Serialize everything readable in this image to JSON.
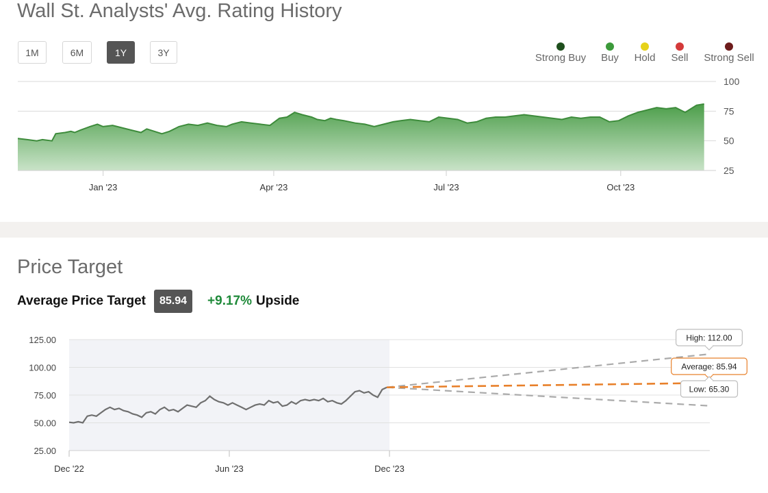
{
  "rating_section": {
    "title": "Wall St. Analysts' Avg. Rating History",
    "range_buttons": [
      "1M",
      "6M",
      "1Y",
      "3Y"
    ],
    "active_range": "1Y",
    "legend": [
      {
        "label": "Strong Buy",
        "color": "#1e4f1d"
      },
      {
        "label": "Buy",
        "color": "#3c9a3a"
      },
      {
        "label": "Hold",
        "color": "#e6d21a"
      },
      {
        "label": "Sell",
        "color": "#d43a3a"
      },
      {
        "label": "Strong Sell",
        "color": "#6d1c1c"
      }
    ]
  },
  "price_target_section": {
    "title": "Price Target",
    "avg_label": "Average Price Target",
    "avg_value": "85.94",
    "upside_pct": "+9.17%",
    "upside_word": "Upside",
    "callouts": {
      "high": "High: 112.00",
      "average": "Average: 85.94",
      "low": "Low: 65.30"
    }
  },
  "chart_data": [
    {
      "type": "area",
      "name": "rating-history",
      "ylim": [
        25,
        100
      ],
      "yticks": [
        100,
        75,
        50,
        25
      ],
      "xticks": [
        "Jan '23",
        "Apr '23",
        "Jul '23",
        "Oct '23"
      ],
      "grid": true,
      "color": "#4c9e4a",
      "x_days": [
        0,
        5,
        10,
        13,
        18,
        20,
        25,
        28,
        30,
        33,
        38,
        42,
        45,
        50,
        55,
        60,
        65,
        68,
        72,
        76,
        80,
        85,
        90,
        95,
        100,
        105,
        110,
        113,
        118,
        123,
        128,
        133,
        138,
        142,
        146,
        150,
        155,
        158,
        162,
        165,
        168,
        172,
        178,
        183,
        188,
        193,
        198,
        202,
        207,
        212,
        217,
        222,
        227,
        232,
        237,
        242,
        247,
        252,
        257,
        262,
        267,
        272,
        277,
        282,
        287,
        292,
        297,
        302,
        307,
        312,
        317,
        322,
        327,
        332,
        337,
        342,
        347,
        352,
        358,
        362
      ],
      "values": [
        52,
        51,
        50,
        51,
        50,
        56,
        57,
        58,
        57,
        59,
        62,
        64,
        62,
        63,
        61,
        59,
        57,
        60,
        58,
        56,
        58,
        62,
        64,
        63,
        65,
        63,
        62,
        64,
        66,
        65,
        64,
        63,
        69,
        70,
        74,
        72,
        70,
        68,
        67,
        69,
        68,
        67,
        65,
        64,
        62,
        64,
        66,
        67,
        68,
        67,
        66,
        70,
        69,
        68,
        65,
        66,
        69,
        70,
        70,
        71,
        72,
        71,
        70,
        69,
        68,
        70,
        69,
        70,
        70,
        66,
        67,
        71,
        74,
        76,
        78,
        77,
        78,
        74,
        80,
        81
      ],
      "note_only": false
    },
    {
      "type": "line",
      "name": "price-target",
      "ylim": [
        25,
        125
      ],
      "yticks": [
        125.0,
        100.0,
        75.0,
        50.0,
        25.0
      ],
      "xticks": [
        "Dec '22",
        "Jun '23",
        "Dec '23"
      ],
      "grid": true,
      "history_values": [
        50.5,
        50,
        51,
        50,
        56,
        57,
        56,
        59,
        62,
        64,
        62,
        63,
        61,
        60,
        58,
        57,
        55,
        59,
        60,
        58,
        62,
        64,
        61,
        62,
        60,
        63,
        66,
        65,
        64,
        68,
        70,
        74,
        71,
        69,
        68,
        66,
        68,
        66,
        64,
        62,
        64,
        66,
        67,
        66,
        70,
        68,
        69,
        65,
        66,
        69,
        67,
        70,
        71,
        70,
        71,
        70,
        72,
        69,
        70,
        68,
        67,
        70,
        74,
        78,
        79,
        77,
        78,
        75,
        73,
        80,
        82
      ],
      "last_price": 78.72,
      "target_high": 112.0,
      "target_average": 85.94,
      "target_low": 65.3
    }
  ]
}
